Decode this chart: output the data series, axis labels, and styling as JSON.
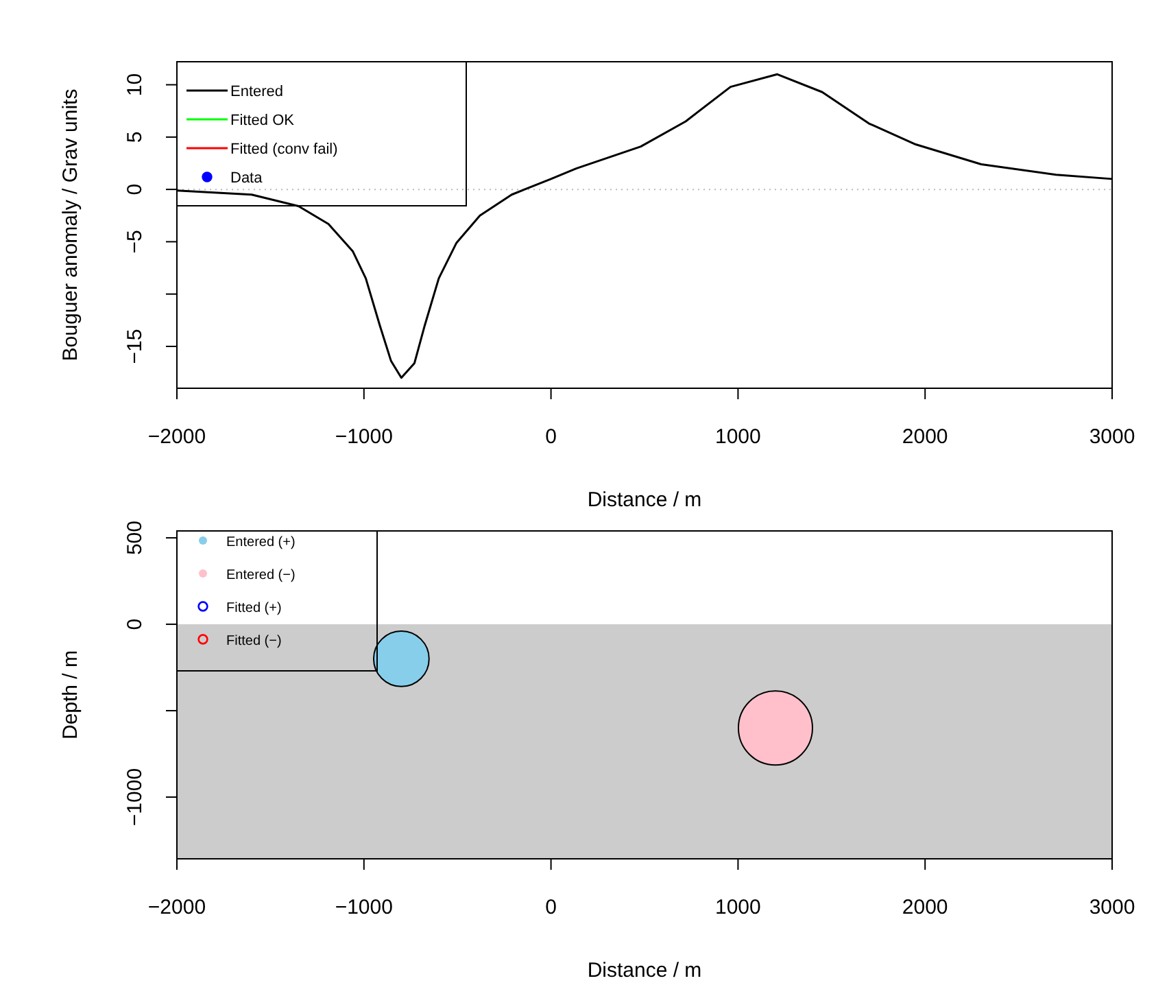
{
  "chart_data": [
    {
      "type": "line",
      "xlabel": "Distance / m",
      "ylabel": "Bouguer anomaly / Grav units",
      "xlim": [
        -2000,
        3000
      ],
      "xticks": [
        -2000,
        -1000,
        0,
        1000,
        2000,
        3000
      ],
      "ylim": [
        -19,
        12.2
      ],
      "yticks": [
        10,
        5,
        0,
        -5,
        {
          "value": -10,
          "label": null
        },
        -15
      ],
      "legend": "top left",
      "ref_lines": [
        {
          "axis": "y",
          "value": 0,
          "color": "#bbbbbb",
          "line_style": "dotted"
        }
      ],
      "series": [
        {
          "name": "Entered",
          "color": "#000000",
          "x": [
            -2000,
            -1600,
            -1350,
            -1190,
            -1060,
            -990,
            -915,
            -855,
            -800,
            -730,
            -675,
            -600,
            -505,
            -380,
            -210,
            0,
            135,
            480,
            720,
            960,
            1210,
            1450,
            1700,
            1950,
            2300,
            2700,
            3000
          ],
          "values": [
            -0.1,
            -0.5,
            -1.6,
            -3.3,
            -5.9,
            -8.5,
            -13,
            -16.4,
            -18,
            -16.6,
            -13,
            -8.5,
            -5.1,
            -2.5,
            -0.5,
            1,
            2,
            4.1,
            6.5,
            9.8,
            11,
            9.3,
            6.3,
            4.3,
            2.4,
            1.4,
            1
          ]
        },
        {
          "name": "Fitted OK",
          "color": "#00ff00"
        },
        {
          "name": "Fitted (conv fail)",
          "color": "#ff0000"
        },
        {
          "name": "Data",
          "color": "#0000ff",
          "type": "scatter",
          "marker": "circle"
        }
      ]
    },
    {
      "type": "bubble",
      "xlabel": "Distance / m",
      "ylabel": "Depth / m",
      "xlim": [
        -2000,
        3000
      ],
      "xticks": [
        -2000,
        -1000,
        0,
        1000,
        2000,
        3000
      ],
      "ylim": [
        -1357,
        540
      ],
      "yticks": [
        500,
        0,
        {
          "value": -500,
          "label": null
        },
        -1000
      ],
      "legend": "top left",
      "bands": [
        {
          "axis": "y",
          "from": -1357,
          "to": 0,
          "color": "#cccccc"
        }
      ],
      "series": [
        {
          "name": "Entered (+)",
          "color": "#87ceeb",
          "x": [
            -800
          ],
          "values": [
            -200
          ],
          "sizes": [
            0.56
          ]
        },
        {
          "name": "Entered (−)",
          "color": "#ffc0cb",
          "x": [
            1200
          ],
          "values": [
            -600
          ],
          "sizes": [
            1
          ]
        },
        {
          "name": "Fitted (+)",
          "color": "#0000ff",
          "type": "scatter"
        },
        {
          "name": "Fitted (−)",
          "color": "#ff0000",
          "type": "scatter"
        }
      ]
    }
  ]
}
